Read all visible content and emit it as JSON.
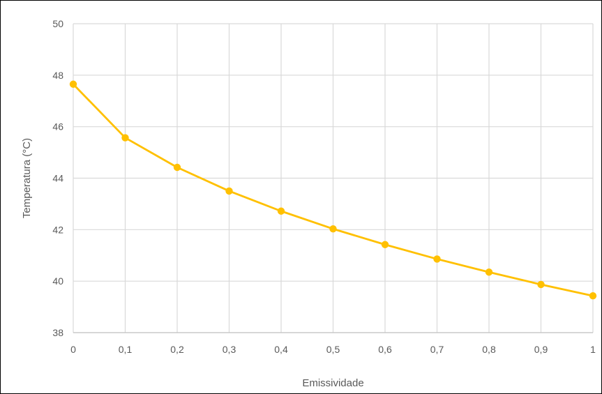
{
  "chart_data": {
    "type": "line",
    "title": "",
    "xlabel": "Emissividade",
    "ylabel": "Temperatura (°C)",
    "x_ticks": [
      "0",
      "0,1",
      "0,2",
      "0,3",
      "0,4",
      "0,5",
      "0,6",
      "0,7",
      "0,8",
      "0,9",
      "1"
    ],
    "y_ticks": [
      "38",
      "40",
      "42",
      "44",
      "46",
      "48",
      "50"
    ],
    "xlim": [
      0,
      1
    ],
    "ylim": [
      38,
      50
    ],
    "grid": true,
    "legend": "none",
    "series": [
      {
        "color": "#FFC000",
        "x": [
          0,
          0.1,
          0.2,
          0.3,
          0.4,
          0.5,
          0.6,
          0.7,
          0.8,
          0.9,
          1.0
        ],
        "y": [
          47.65,
          45.57,
          44.42,
          43.5,
          42.72,
          42.03,
          41.42,
          40.86,
          40.35,
          39.87,
          39.43
        ]
      }
    ]
  }
}
